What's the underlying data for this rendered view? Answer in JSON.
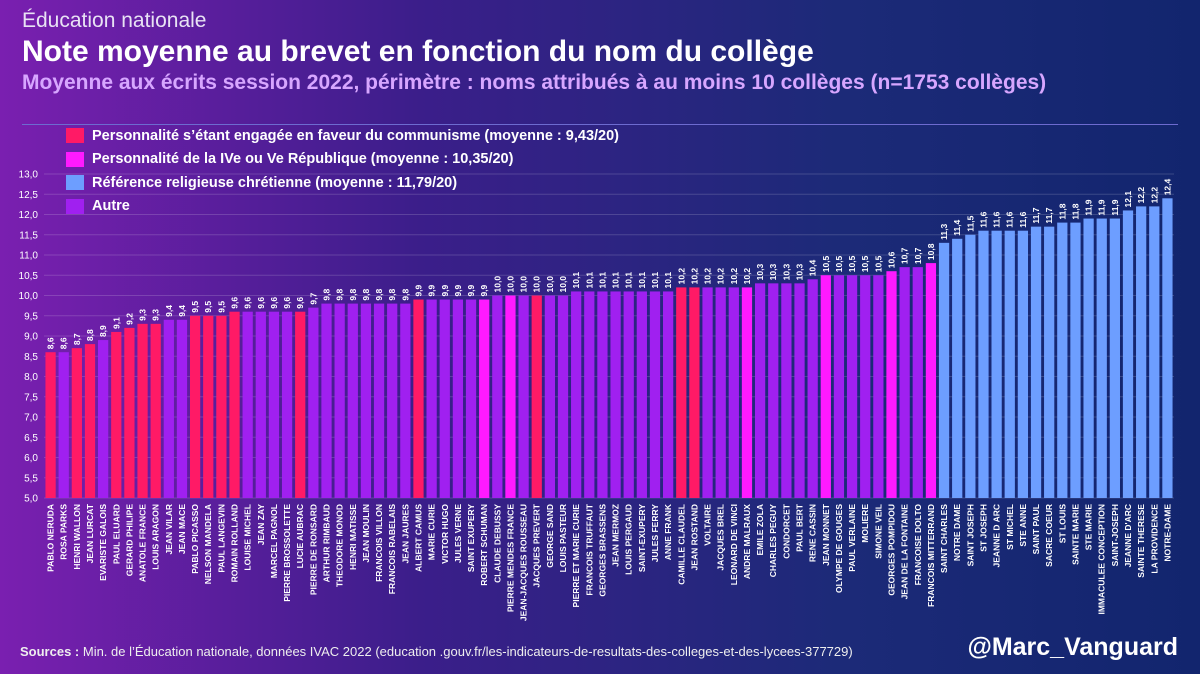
{
  "header": {
    "kicker": "Éducation nationale",
    "title": "Note moyenne au brevet en fonction du nom du collège",
    "subtitle": "Moyenne aux écrits session 2022, périmètre : noms attribués à au moins 10 collèges (n=1753 collèges)"
  },
  "legend": [
    {
      "label": "Personnalité s’étant engagée en faveur du communisme (moyenne : 9,43/20)",
      "color": "#ff1a66"
    },
    {
      "label": "Personnalité de la IVe ou Ve République (moyenne : 10,35/20)",
      "color": "#ff1aff"
    },
    {
      "label": "Référence religieuse chrétienne (moyenne : 11,79/20)",
      "color": "#6d9eff"
    },
    {
      "label": "Autre",
      "color": "#a020f0"
    }
  ],
  "colors": {
    "communisme": "#ff1a66",
    "republique": "#ff1aff",
    "religieuse": "#6d9eff",
    "autre": "#a020f0"
  },
  "footer": {
    "sources_label": "Sources :",
    "sources_text": " Min. de l’Éducation nationale, données IVAC 2022 (education .gouv.fr/les-indicateurs-de-resultats-des-colleges-et-des-lycees-377729)",
    "handle": "@Marc_Vanguard"
  },
  "chart_data": {
    "type": "bar",
    "ylim": [
      5.0,
      13.0
    ],
    "yticks": [
      "5,0",
      "5,5",
      "6,0",
      "6,5",
      "7,0",
      "7,5",
      "8,0",
      "8,5",
      "9,0",
      "9,5",
      "10,0",
      "10,5",
      "11,0",
      "11,5",
      "12,0",
      "12,5",
      "13,0"
    ],
    "grid": true,
    "legend_position": "top-left",
    "categories": [
      "PABLO NERUDA",
      "ROSA PARKS",
      "HENRI WALLON",
      "JEAN LURCAT",
      "EVARISTE GALOIS",
      "PAUL ELUARD",
      "GERARD PHILIPE",
      "ANATOLE FRANCE",
      "LOUIS ARAGON",
      "JEAN VILAR",
      "JEAN MACE",
      "PABLO PICASSO",
      "NELSON MANDELA",
      "PAUL LANGEVIN",
      "ROMAIN ROLLAND",
      "LOUISE MICHEL",
      "JEAN ZAY",
      "MARCEL PAGNOL",
      "PIERRE BROSSOLETTE",
      "LUCIE AUBRAC",
      "PIERRE DE RONSARD",
      "ARTHUR RIMBAUD",
      "THEODORE MONOD",
      "HENRI MATISSE",
      "JEAN MOULIN",
      "FRANCOIS VILLON",
      "FRANCOIS RABELAIS",
      "JEAN JAURES",
      "ALBERT CAMUS",
      "MARIE CURIE",
      "VICTOR HUGO",
      "JULES VERNE",
      "SAINT EXUPERY",
      "ROBERT SCHUMAN",
      "CLAUDE DEBUSSY",
      "PIERRE MENDES FRANCE",
      "JEAN-JACQUES ROUSSEAU",
      "JACQUES PREVERT",
      "GEORGE SAND",
      "LOUIS PASTEUR",
      "PIERRE ET MARIE CURIE",
      "FRANCOIS TRUFFAUT",
      "GEORGES BRASSENS",
      "JEAN MERMOZ",
      "LOUIS PERGAUD",
      "SAINT-EXUPERY",
      "JULES FERRY",
      "ANNE FRANK",
      "CAMILLE CLAUDEL",
      "JEAN ROSTAND",
      "VOLTAIRE",
      "JACQUES BREL",
      "LEONARD DE VINCI",
      "ANDRE MALRAUX",
      "EMILE ZOLA",
      "CHARLES PEGUY",
      "CONDORCET",
      "PAUL BERT",
      "RENE CASSIN",
      "JEAN MONNET",
      "OLYMPE DE GOUGES",
      "PAUL VERLAINE",
      "MOLIERE",
      "SIMONE VEIL",
      "GEORGES POMPIDOU",
      "JEAN DE LA FONTAINE",
      "FRANCOISE DOLTO",
      "FRANCOIS MITTERRAND",
      "SAINT CHARLES",
      "NOTRE DAME",
      "SAINT JOSEPH",
      "ST JOSEPH",
      "JEANNE D ARC",
      "ST MICHEL",
      "STE ANNE",
      "SAINT PAUL",
      "SACRE COEUR",
      "ST LOUIS",
      "SAINTE MARIE",
      "STE MARIE",
      "IMMACULEE CONCEPTION",
      "SAINT-JOSEPH",
      "JEANNE D'ARC",
      "SAINTE THERESE",
      "LA PROVIDENCE",
      "NOTRE-DAME"
    ],
    "values": [
      8.6,
      8.6,
      8.7,
      8.8,
      8.9,
      9.1,
      9.2,
      9.3,
      9.3,
      9.4,
      9.4,
      9.5,
      9.5,
      9.5,
      9.6,
      9.6,
      9.6,
      9.6,
      9.6,
      9.6,
      9.7,
      9.8,
      9.8,
      9.8,
      9.8,
      9.8,
      9.8,
      9.8,
      9.9,
      9.9,
      9.9,
      9.9,
      9.9,
      9.9,
      10.0,
      10.0,
      10.0,
      10.0,
      10.0,
      10.0,
      10.1,
      10.1,
      10.1,
      10.1,
      10.1,
      10.1,
      10.1,
      10.1,
      10.2,
      10.2,
      10.2,
      10.2,
      10.2,
      10.2,
      10.3,
      10.3,
      10.3,
      10.3,
      10.4,
      10.5,
      10.5,
      10.5,
      10.5,
      10.5,
      10.6,
      10.7,
      10.7,
      10.8,
      11.3,
      11.4,
      11.5,
      11.6,
      11.6,
      11.6,
      11.6,
      11.7,
      11.7,
      11.8,
      11.8,
      11.9,
      11.9,
      11.9,
      12.1,
      12.2,
      12.2,
      12.4
    ],
    "value_labels": [
      "8,6",
      "8,6",
      "8,7",
      "8,8",
      "8,9",
      "9,1",
      "9,2",
      "9,3",
      "9,3",
      "9,4",
      "9,4",
      "9,5",
      "9,5",
      "9,5",
      "9,6",
      "9,6",
      "9,6",
      "9,6",
      "9,6",
      "9,6",
      "9,7",
      "9,8",
      "9,8",
      "9,8",
      "9,8",
      "9,8",
      "9,8",
      "9,8",
      "9,9",
      "9,9",
      "9,9",
      "9,9",
      "9,9",
      "9,9",
      "10,0",
      "10,0",
      "10,0",
      "10,0",
      "10,0",
      "10,0",
      "10,1",
      "10,1",
      "10,1",
      "10,1",
      "10,1",
      "10,1",
      "10,1",
      "10,1",
      "10,2",
      "10,2",
      "10,2",
      "10,2",
      "10,2",
      "10,2",
      "10,3",
      "10,3",
      "10,3",
      "10,3",
      "10,4",
      "10,5",
      "10,5",
      "10,5",
      "10,5",
      "10,5",
      "10,6",
      "10,7",
      "10,7",
      "10,8",
      "11,3",
      "11,4",
      "11,5",
      "11,6",
      "11,6",
      "11,6",
      "11,6",
      "11,7",
      "11,7",
      "11,8",
      "11,8",
      "11,9",
      "11,9",
      "11,9",
      "12,1",
      "12,2",
      "12,2",
      "12,4"
    ],
    "groups": [
      "communisme",
      "autre",
      "communisme",
      "communisme",
      "autre",
      "communisme",
      "communisme",
      "communisme",
      "communisme",
      "autre",
      "autre",
      "communisme",
      "communisme",
      "communisme",
      "communisme",
      "autre",
      "autre",
      "autre",
      "autre",
      "communisme",
      "autre",
      "autre",
      "autre",
      "autre",
      "autre",
      "autre",
      "autre",
      "autre",
      "communisme",
      "autre",
      "autre",
      "autre",
      "autre",
      "republique",
      "autre",
      "republique",
      "autre",
      "communisme",
      "autre",
      "autre",
      "autre",
      "autre",
      "autre",
      "autre",
      "autre",
      "autre",
      "autre",
      "autre",
      "communisme",
      "communisme",
      "autre",
      "autre",
      "autre",
      "republique",
      "autre",
      "autre",
      "autre",
      "autre",
      "autre",
      "republique",
      "autre",
      "autre",
      "autre",
      "autre",
      "republique",
      "autre",
      "autre",
      "republique",
      "religieuse",
      "religieuse",
      "religieuse",
      "religieuse",
      "religieuse",
      "religieuse",
      "religieuse",
      "religieuse",
      "religieuse",
      "religieuse",
      "religieuse",
      "religieuse",
      "religieuse",
      "religieuse",
      "religieuse",
      "religieuse",
      "religieuse",
      "religieuse"
    ]
  }
}
